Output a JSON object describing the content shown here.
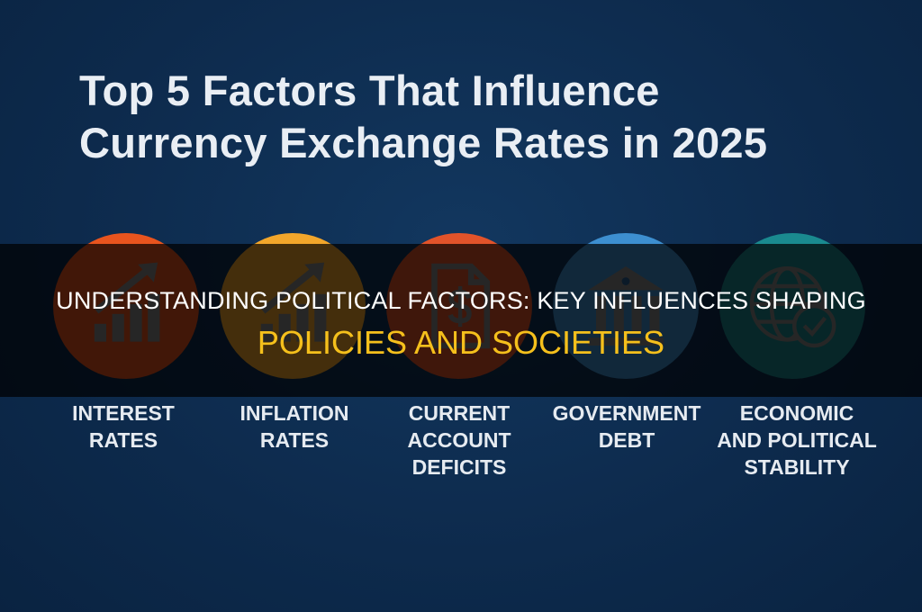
{
  "infographic": {
    "headline_line1": "Top 5 Factors That Influence",
    "headline_line2": "Currency Exchange Rates in 2025",
    "factors": [
      {
        "label_lines": [
          "INTEREST",
          "RATES"
        ],
        "icon": "bar-chart-arrow-up-icon",
        "color": "#e8541e"
      },
      {
        "label_lines": [
          "INFLATION",
          "RATES"
        ],
        "icon": "bar-chart-arrow-up-icon",
        "color": "#f2a62b"
      },
      {
        "label_lines": [
          "CURRENT",
          "ACCOUNT",
          "DEFICITS"
        ],
        "icon": "document-dollar-icon",
        "color": "#e2532a"
      },
      {
        "label_lines": [
          "GOVERNMENT",
          "DEBT"
        ],
        "icon": "bank-building-icon",
        "color": "#3d8fd0"
      },
      {
        "label_lines": [
          "ECONOMIC",
          "AND POLITICAL",
          "STABILITY"
        ],
        "icon": "globe-check-icon",
        "color": "#1a8a8f"
      }
    ]
  },
  "overlay": {
    "title_line1": "UNDERSTANDING POLITICAL FACTORS: KEY INFLUENCES SHAPING",
    "title_line2": "POLICIES AND SOCIETIES",
    "title_line1_color": "#ffffff",
    "title_line2_color": "#f5c01c"
  }
}
